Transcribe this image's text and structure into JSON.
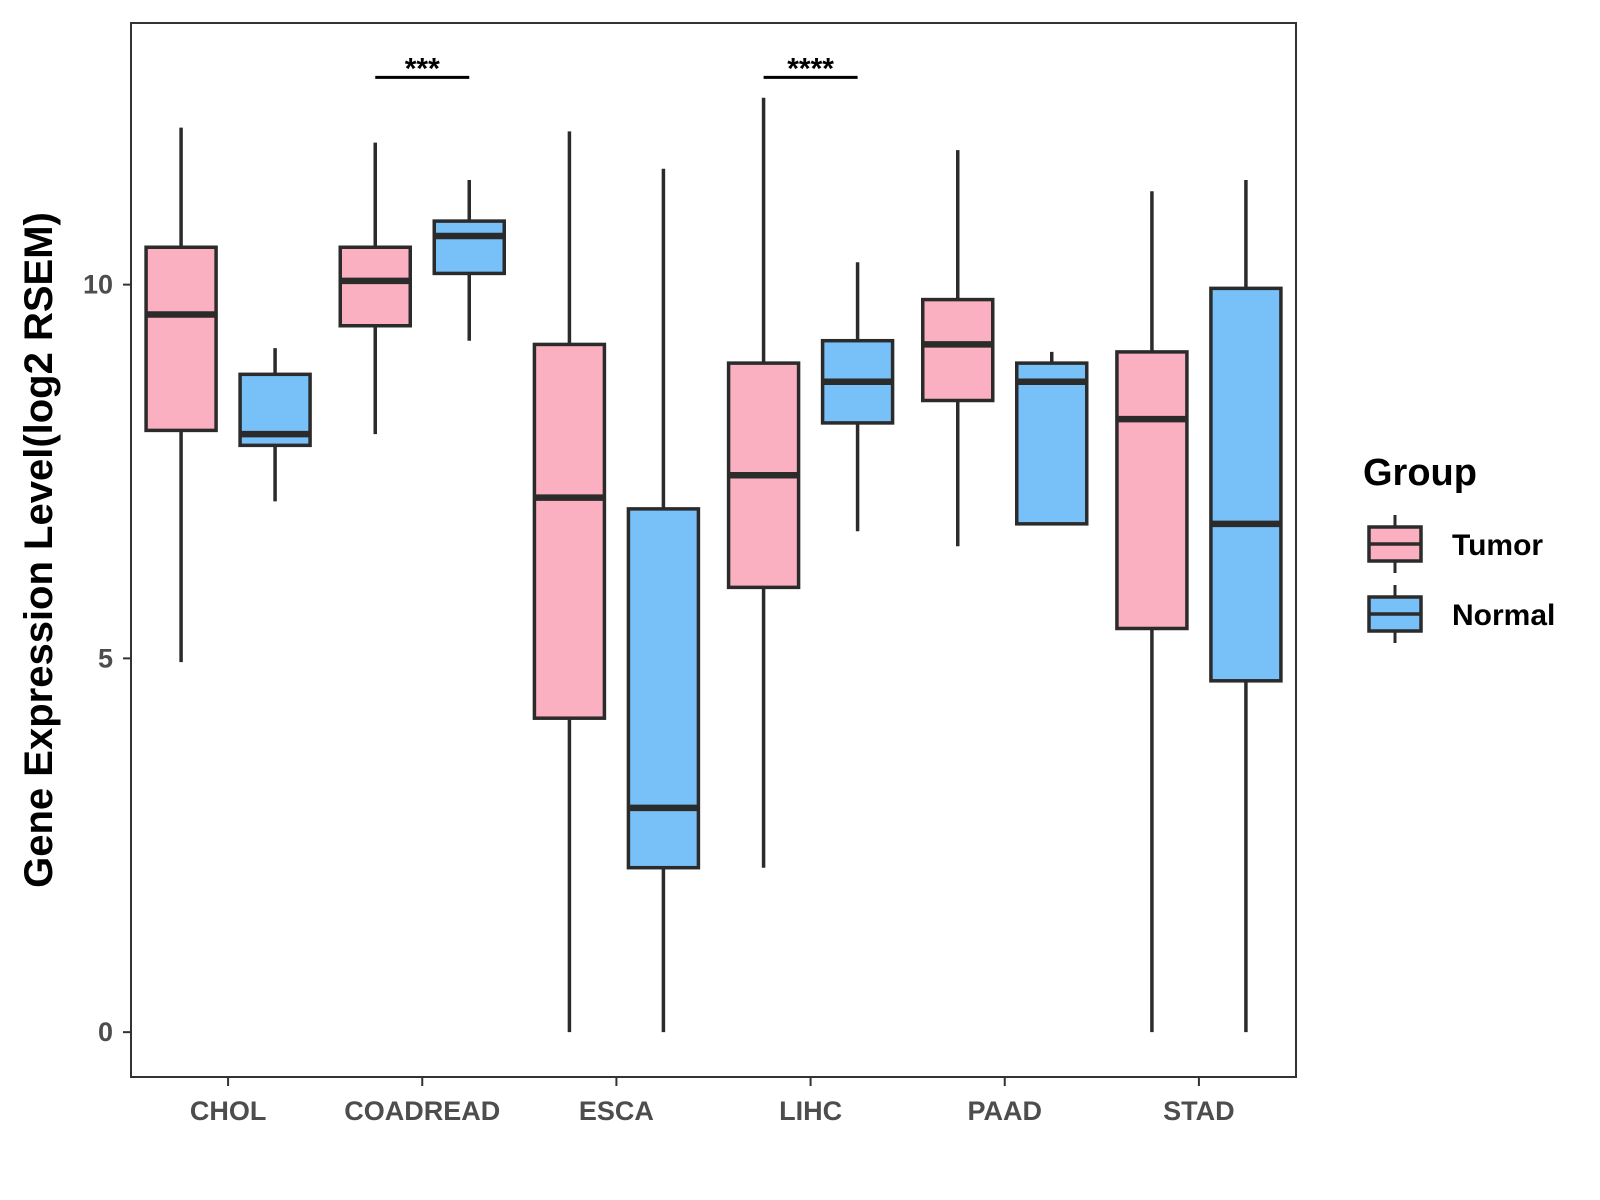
{
  "chart_data": {
    "type": "boxplot",
    "title": "",
    "xlabel": "",
    "ylabel": "Gene Expression Level(log2 RSEM)",
    "ylim": [
      -0.6,
      13.5
    ],
    "yticks": [
      0,
      5,
      10
    ],
    "categories": [
      "CHOL",
      "COADREAD",
      "ESCA",
      "LIHC",
      "PAAD",
      "STAD"
    ],
    "legend": {
      "title": "Group",
      "position": "right"
    },
    "series": [
      {
        "name": "Tumor",
        "color": "#fbb0c1",
        "boxes": [
          {
            "category": "CHOL",
            "whisker_low": 4.95,
            "q1": 8.05,
            "median": 9.6,
            "q3": 10.5,
            "whisker_high": 12.1
          },
          {
            "category": "COADREAD",
            "whisker_low": 8.0,
            "q1": 9.45,
            "median": 10.05,
            "q3": 10.5,
            "whisker_high": 11.9
          },
          {
            "category": "ESCA",
            "whisker_low": 0.0,
            "q1": 4.2,
            "median": 7.15,
            "q3": 9.2,
            "whisker_high": 12.05
          },
          {
            "category": "LIHC",
            "whisker_low": 2.2,
            "q1": 5.95,
            "median": 7.45,
            "q3": 8.95,
            "whisker_high": 12.5
          },
          {
            "category": "PAAD",
            "whisker_low": 6.5,
            "q1": 8.45,
            "median": 9.2,
            "q3": 9.8,
            "whisker_high": 11.8
          },
          {
            "category": "STAD",
            "whisker_low": 0.0,
            "q1": 5.4,
            "median": 8.2,
            "q3": 9.1,
            "whisker_high": 11.25
          }
        ]
      },
      {
        "name": "Normal",
        "color": "#78c1f8",
        "boxes": [
          {
            "category": "CHOL",
            "whisker_low": 7.1,
            "q1": 7.85,
            "median": 8.0,
            "q3": 8.8,
            "whisker_high": 9.15
          },
          {
            "category": "COADREAD",
            "whisker_low": 9.25,
            "q1": 10.15,
            "median": 10.65,
            "q3": 10.85,
            "whisker_high": 11.4
          },
          {
            "category": "ESCA",
            "whisker_low": 0.0,
            "q1": 2.2,
            "median": 3.0,
            "q3": 7.0,
            "whisker_high": 11.55
          },
          {
            "category": "LIHC",
            "whisker_low": 6.7,
            "q1": 8.15,
            "median": 8.7,
            "q3": 9.25,
            "whisker_high": 10.3
          },
          {
            "category": "PAAD",
            "whisker_low": 6.8,
            "q1": 6.8,
            "median": 8.7,
            "q3": 8.95,
            "whisker_high": 9.1
          },
          {
            "category": "STAD",
            "whisker_low": 0.0,
            "q1": 4.7,
            "median": 6.8,
            "q3": 9.95,
            "whisker_high": 11.4
          }
        ]
      }
    ],
    "annotations": [
      {
        "category": "COADREAD",
        "label": "***",
        "y": 12.8
      },
      {
        "category": "LIHC",
        "label": "****",
        "y": 12.8
      }
    ]
  }
}
